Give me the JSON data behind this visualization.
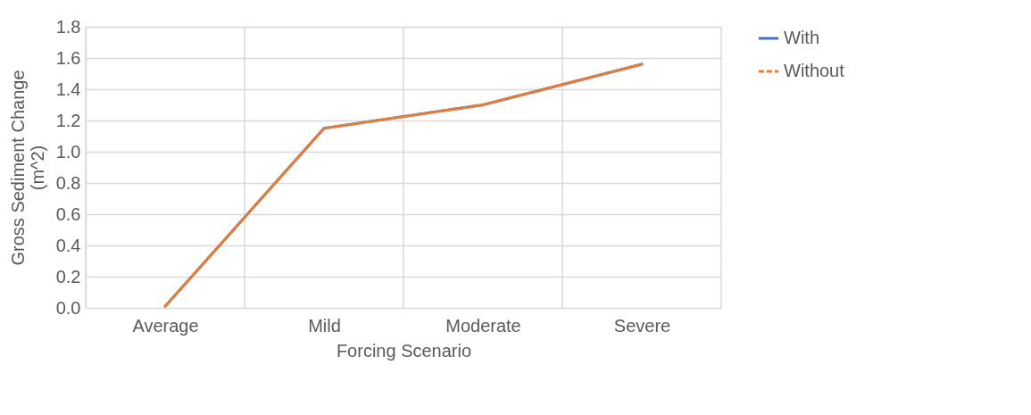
{
  "chart_data": {
    "type": "line",
    "xlabel": "Forcing Scenario",
    "ylabel": "Gross Sediment Change (m^2)",
    "categories": [
      "Average",
      "Mild",
      "Moderate",
      "Severe"
    ],
    "series": [
      {
        "name": "With",
        "color": "#4472c4",
        "values": [
          0.01,
          1.15,
          1.3,
          1.56
        ],
        "line_style": "solid"
      },
      {
        "name": "Without",
        "color": "#ed7d31",
        "values": [
          0.01,
          1.15,
          1.3,
          1.56
        ],
        "line_style": "dashed"
      }
    ],
    "ylim": [
      0,
      1.8
    ],
    "yticks": [
      {
        "value": 0,
        "label": "0.0"
      },
      {
        "value": 0.2,
        "label": "0.2"
      },
      {
        "value": 0.4,
        "label": "0.4"
      },
      {
        "value": 0.6,
        "label": "0.6"
      },
      {
        "value": 0.8,
        "label": "0.8"
      },
      {
        "value": 1,
        "label": "1.0"
      },
      {
        "value": 1.2,
        "label": "1.2"
      },
      {
        "value": 1.4,
        "label": "1.4"
      },
      {
        "value": 1.6,
        "label": "1.6"
      },
      {
        "value": 1.8,
        "label": "1.8"
      }
    ],
    "grid": true,
    "legend": "right",
    "marker": "none"
  }
}
